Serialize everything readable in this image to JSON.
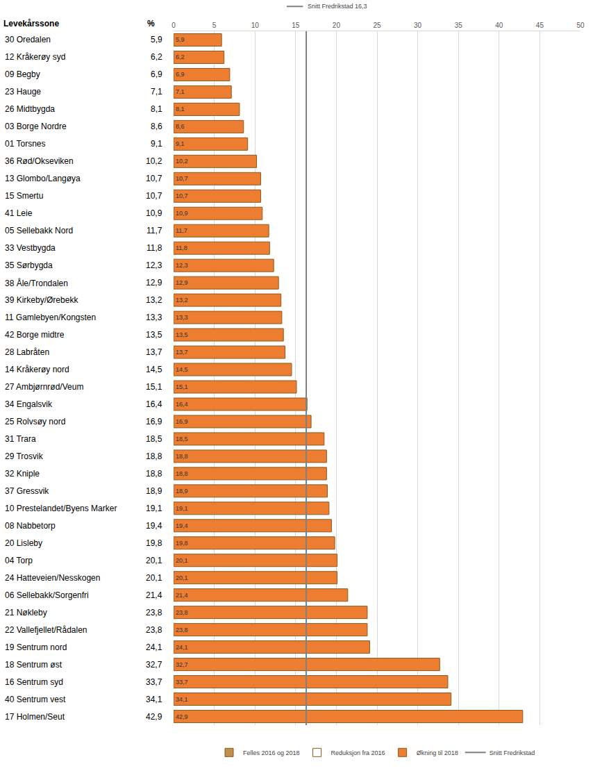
{
  "chart_data": {
    "type": "bar",
    "orientation": "horizontal",
    "category_header": "Levekårssone",
    "value_header": "%",
    "categories": [
      "30 Oredalen",
      "12 Kråkerøy syd",
      "09 Begby",
      "23 Hauge",
      "26 Midtbygda",
      "03 Borge Nordre",
      "01 Torsnes",
      "36 Rød/Okseviken",
      "13 Glombo/Langøya",
      "15 Smertu",
      "41 Leie",
      "05 Sellebakk Nord",
      "33 Vestbygda",
      "35 Sørbygda",
      "38 Åle/Trondalen",
      "39 Kirkeby/Ørebekk",
      "11 Gamlebyen/Kongsten",
      "42 Borge midtre",
      "28 Labråten",
      "14 Kråkerøy nord",
      "27 Ambjørnrød/Veum",
      "34 Engalsvik",
      "25 Rolvsøy nord",
      "31 Trara",
      "29 Trosvik",
      "32 Kniple",
      "37 Gressvik",
      "10 Prestelandet/Byens Marker",
      "08 Nabbetorp",
      "20 Lisleby",
      "04 Torp",
      "24 Hatteveien/Nesskogen",
      "06 Sellebakk/Sorgenfri",
      "21 Nøkleby",
      "22 Vallefjellet/Rådalen",
      "19 Sentrum nord",
      "18 Sentrum øst",
      "16 Sentrum syd",
      "40 Sentrum vest",
      "17 Holmen/Seut"
    ],
    "series": [
      {
        "name": "Felles 2016 og 2018",
        "color": "#c0904d",
        "values": [
          null,
          null,
          null,
          null,
          null,
          null,
          null,
          null,
          null,
          null,
          null,
          null,
          null,
          null,
          null,
          null,
          null,
          null,
          null,
          null,
          null,
          null,
          null,
          null,
          null,
          null,
          null,
          null,
          null,
          null,
          null,
          null,
          null,
          null,
          null,
          null,
          null,
          null,
          null,
          null
        ]
      },
      {
        "name": "Reduksjon fra 2016",
        "color": "#ffffff",
        "values": [
          null,
          null,
          null,
          null,
          null,
          null,
          null,
          null,
          null,
          null,
          null,
          null,
          null,
          null,
          null,
          null,
          null,
          null,
          null,
          null,
          null,
          null,
          null,
          null,
          null,
          null,
          null,
          null,
          null,
          null,
          null,
          null,
          null,
          null,
          null,
          null,
          null,
          null,
          null,
          null
        ]
      },
      {
        "name": "Økning til 2018",
        "color": "#ed7d31",
        "values": [
          5.9,
          6.2,
          6.9,
          7.1,
          8.1,
          8.6,
          9.1,
          10.2,
          10.7,
          10.7,
          10.9,
          11.7,
          11.8,
          12.3,
          12.9,
          13.2,
          13.3,
          13.5,
          13.7,
          14.5,
          15.1,
          16.4,
          16.9,
          18.5,
          18.8,
          18.8,
          18.9,
          19.1,
          19.4,
          19.8,
          20.1,
          20.1,
          21.4,
          23.8,
          23.8,
          24.1,
          32.7,
          33.7,
          34.1,
          42.9
        ],
        "value_labels": [
          "5,9",
          "6,2",
          "6,9",
          "7,1",
          "8,1",
          "8,6",
          "9,1",
          "10,2",
          "10,7",
          "10,7",
          "10,9",
          "11,7",
          "11,8",
          "12,3",
          "12,9",
          "13,2",
          "13,3",
          "13,5",
          "13,7",
          "14,5",
          "15,1",
          "16,4",
          "16,9",
          "18,5",
          "18,8",
          "18,8",
          "18,9",
          "19,1",
          "19,4",
          "19,8",
          "20,1",
          "20,1",
          "21,4",
          "23,8",
          "23,8",
          "24,1",
          "32,7",
          "33,7",
          "34,1",
          "42,9"
        ]
      }
    ],
    "reference_line": {
      "value": 16.3,
      "label": "Snitt Fredrikstad 16,3",
      "legend_name": "Snitt Fredrikstad",
      "color": "#808080"
    },
    "xlim": [
      0,
      50
    ],
    "xticks": [
      0,
      5,
      10,
      15,
      20,
      25,
      30,
      35,
      40,
      45,
      50
    ],
    "grid": true,
    "data_labels": true,
    "legend": "bottom"
  }
}
